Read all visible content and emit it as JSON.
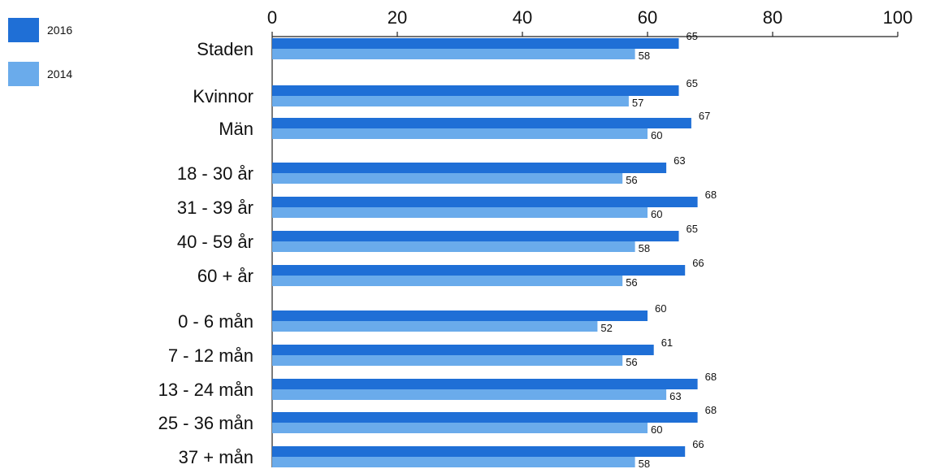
{
  "chart_data": {
    "type": "bar",
    "orientation": "horizontal",
    "categories": [
      "Staden",
      "Kvinnor",
      "Män",
      "18 - 30 år",
      "31 - 39 år",
      "40 - 59 år",
      "60 + år",
      "0 - 6 mån",
      "7 - 12 mån",
      "13 - 24 mån",
      "25 - 36 mån",
      "37 + mån"
    ],
    "series": [
      {
        "name": "2016",
        "color": "#1f6fd6",
        "values": [
          65,
          65,
          67,
          63,
          68,
          65,
          66,
          60,
          61,
          68,
          68,
          66
        ]
      },
      {
        "name": "2014",
        "color": "#6aabeb",
        "values": [
          58,
          57,
          60,
          56,
          60,
          58,
          56,
          52,
          56,
          63,
          60,
          58
        ]
      }
    ],
    "xlim": [
      0,
      100
    ],
    "xticks": [
      0,
      20,
      40,
      60,
      80,
      100
    ],
    "xaxis_position": "top",
    "grid": false,
    "legend_position": "top-left",
    "data_labels": true,
    "title": "",
    "xlabel": "",
    "ylabel": ""
  }
}
